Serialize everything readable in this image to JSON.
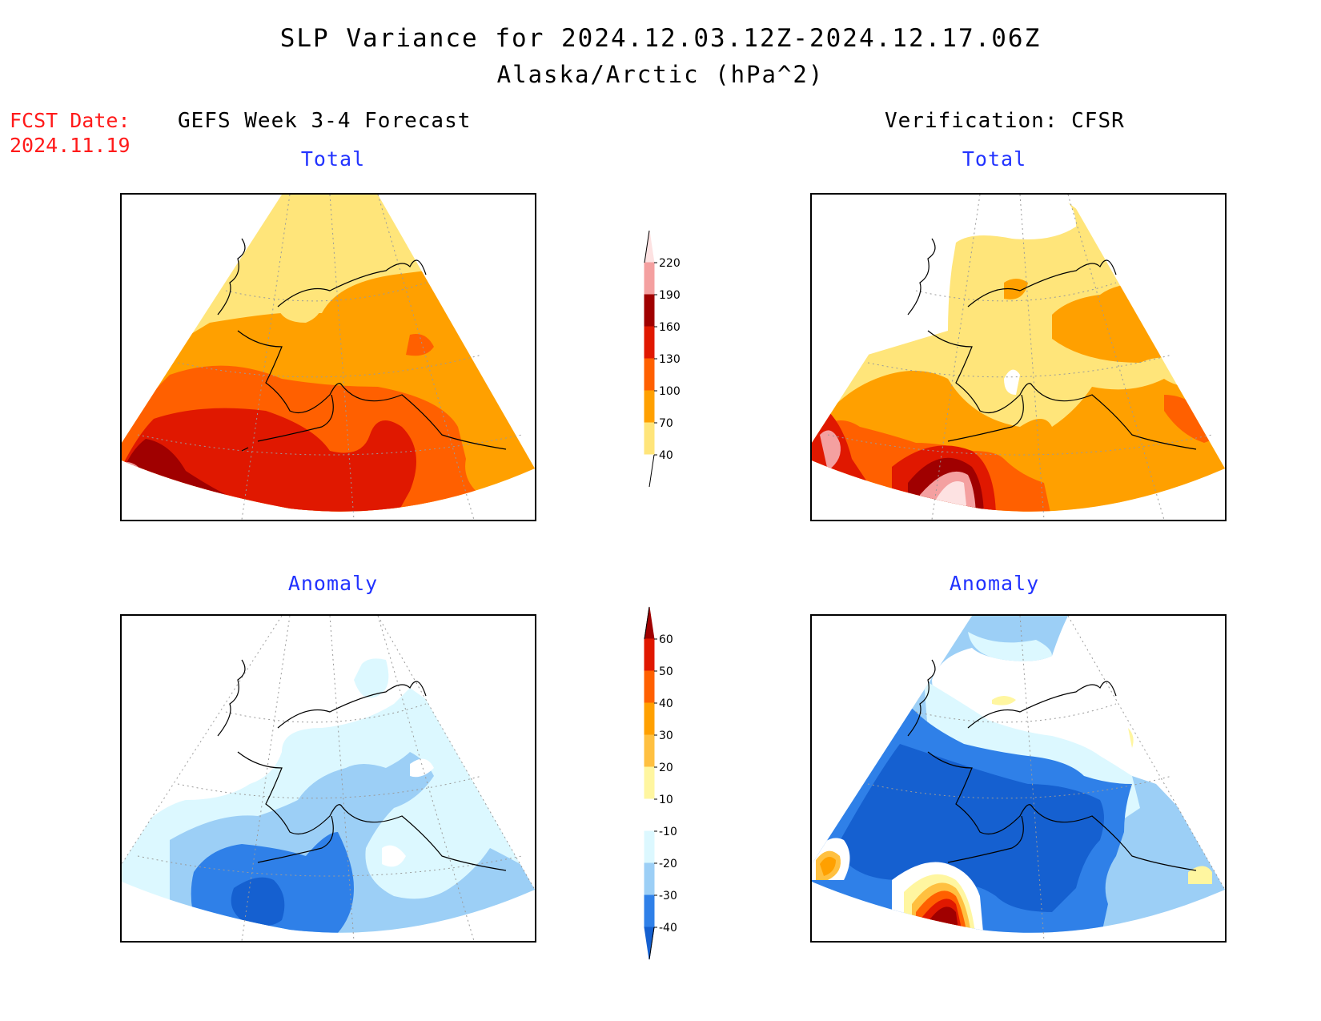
{
  "title": {
    "line1": "SLP Variance for 2024.12.03.12Z-2024.12.17.06Z",
    "line2": "Alaska/Arctic (hPa^2)"
  },
  "forecast_date": {
    "label": "FCST Date:",
    "value": "2024.11.19"
  },
  "columns": {
    "left": "GEFS Week 3-4 Forecast",
    "right": "Verification: CFSR"
  },
  "panels": {
    "top_left": "Total",
    "top_right": "Total",
    "bottom_left": "Anomaly",
    "bottom_right": "Anomaly"
  },
  "colorbars": {
    "total": {
      "ticks": [
        "40",
        "70",
        "100",
        "130",
        "160",
        "190",
        "220"
      ],
      "colors": [
        "#ffffff",
        "#ffe57a",
        "#ffa000",
        "#ff6000",
        "#e01800",
        "#a00000",
        "#f4a0a0",
        "#fde2e2"
      ]
    },
    "anomaly": {
      "ticks": [
        "-40",
        "-30",
        "-20",
        "-10",
        "10",
        "20",
        "30",
        "40",
        "50",
        "60"
      ],
      "colors": [
        "#1560d0",
        "#2f80e8",
        "#9ccff6",
        "#dcf8ff",
        "#ffffff",
        "#fff6a0",
        "#ffc040",
        "#ffa000",
        "#ff6000",
        "#e01800",
        "#a00000"
      ]
    }
  },
  "chart_data": {
    "type": "heatmap",
    "title": "SLP Variance for 2024.12.03.12Z-2024.12.17.06Z",
    "region": "Alaska/Arctic",
    "units": "hPa^2",
    "total_levels": [
      40,
      70,
      100,
      130,
      160,
      190,
      220
    ],
    "anomaly_levels": [
      -40,
      -30,
      -20,
      -10,
      10,
      20,
      30,
      40,
      50,
      60
    ]
  }
}
